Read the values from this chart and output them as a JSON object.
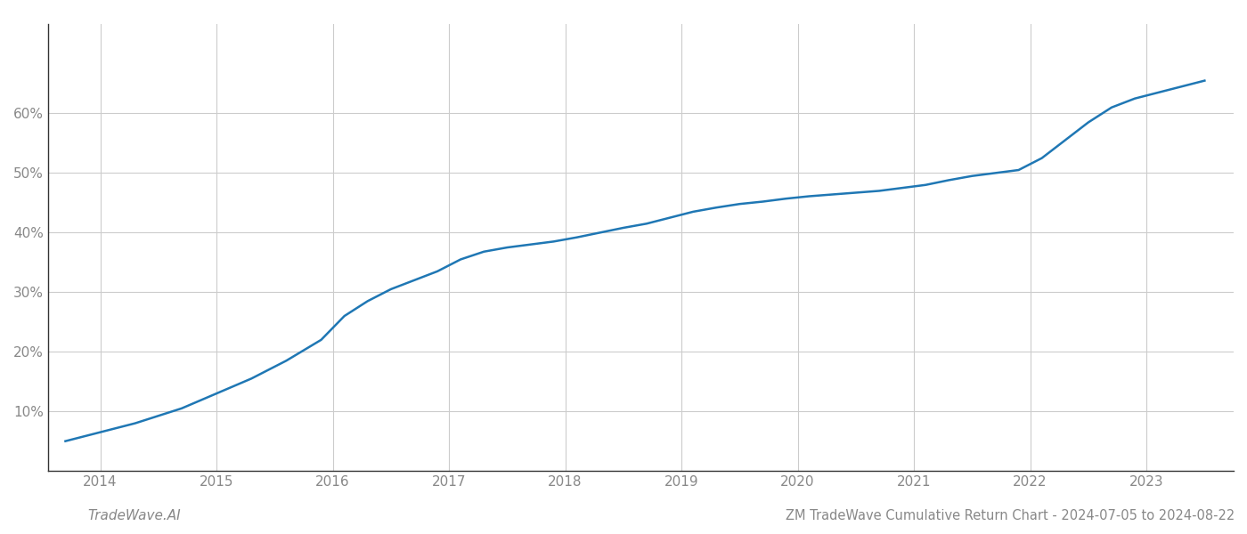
{
  "x_values": [
    2013.7,
    2014.0,
    2014.3,
    2014.7,
    2015.0,
    2015.3,
    2015.6,
    2015.9,
    2016.1,
    2016.3,
    2016.5,
    2016.7,
    2016.9,
    2017.1,
    2017.3,
    2017.5,
    2017.7,
    2017.9,
    2018.1,
    2018.3,
    2018.5,
    2018.7,
    2018.9,
    2019.1,
    2019.3,
    2019.5,
    2019.7,
    2019.9,
    2020.1,
    2020.3,
    2020.5,
    2020.7,
    2020.9,
    2021.1,
    2021.3,
    2021.5,
    2021.7,
    2021.9,
    2022.1,
    2022.3,
    2022.5,
    2022.7,
    2022.9,
    2023.1,
    2023.3,
    2023.5
  ],
  "y_values": [
    5.0,
    6.5,
    8.0,
    10.5,
    13.0,
    15.5,
    18.5,
    22.0,
    26.0,
    28.5,
    30.5,
    32.0,
    33.5,
    35.5,
    36.8,
    37.5,
    38.0,
    38.5,
    39.2,
    40.0,
    40.8,
    41.5,
    42.5,
    43.5,
    44.2,
    44.8,
    45.2,
    45.7,
    46.1,
    46.4,
    46.7,
    47.0,
    47.5,
    48.0,
    48.8,
    49.5,
    50.0,
    50.5,
    52.5,
    55.5,
    58.5,
    61.0,
    62.5,
    63.5,
    64.5,
    65.5
  ],
  "line_color": "#1f77b4",
  "line_width": 1.8,
  "title": "ZM TradeWave Cumulative Return Chart - 2024-07-05 to 2024-08-22",
  "watermark_left": "TradeWave.AI",
  "ytick_labels": [
    "10%",
    "20%",
    "30%",
    "40%",
    "50%",
    "60%"
  ],
  "ytick_values": [
    10,
    20,
    30,
    40,
    50,
    60
  ],
  "xtick_labels": [
    "2014",
    "2015",
    "2016",
    "2017",
    "2018",
    "2019",
    "2020",
    "2021",
    "2022",
    "2023"
  ],
  "xtick_values": [
    2014,
    2015,
    2016,
    2017,
    2018,
    2019,
    2020,
    2021,
    2022,
    2023
  ],
  "xlim": [
    2013.55,
    2023.75
  ],
  "ylim": [
    0,
    75
  ],
  "background_color": "#ffffff",
  "grid_color": "#cccccc",
  "title_fontsize": 10.5,
  "tick_fontsize": 11,
  "watermark_fontsize": 11
}
